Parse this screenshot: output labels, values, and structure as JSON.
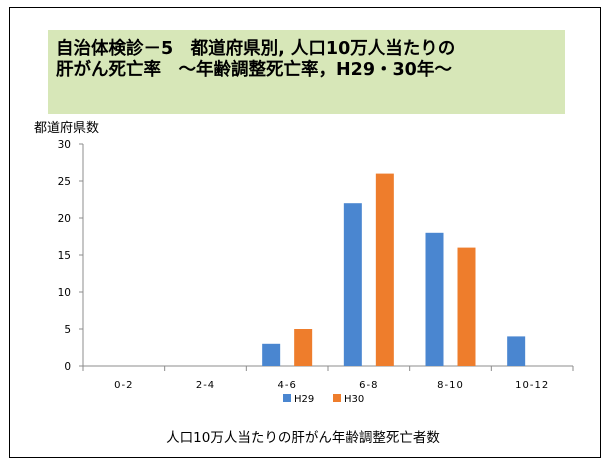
{
  "title_lines": [
    "自治体検診－5　都道府県別, 人口10万人当たりの",
    "肝がん死亡率　～年齢調整死亡率，H29・30年～"
  ],
  "chart_data": {
    "type": "bar",
    "title": "自治体検診－5　都道府県別, 人口10万人当たりの肝がん死亡率　～年齢調整死亡率，H29・30年～",
    "categories": [
      "0-2",
      "2-4",
      "4-6",
      "6-8",
      "8-10",
      "10-12"
    ],
    "series": [
      {
        "name": "H29",
        "color": "#4a86d0",
        "values": [
          0,
          0,
          3,
          22,
          18,
          4
        ]
      },
      {
        "name": "H30",
        "color": "#ee7d2c",
        "values": [
          0,
          0,
          5,
          26,
          16,
          0
        ]
      }
    ],
    "ylabel": "都道府県数",
    "xlabel": "人口10万人当たりの肝がん年齢調整死亡者数",
    "ylim": [
      0,
      30
    ],
    "yticks": [
      0,
      5,
      10,
      15,
      20,
      25,
      30
    ],
    "grid": false,
    "legend": "bottom"
  }
}
